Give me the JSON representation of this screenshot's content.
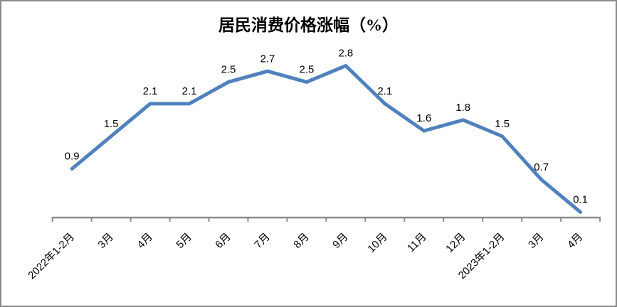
{
  "window": {
    "background_color": "#ffffff",
    "border_color": "#8a8a8a"
  },
  "chart_data": {
    "type": "line",
    "title": "居民消费价格涨幅（%）",
    "categories": [
      "2022年1-2月",
      "3月",
      "4月",
      "5月",
      "6月",
      "7月",
      "8月",
      "9月",
      "10月",
      "11月",
      "12月",
      "2023年1-2月",
      "3月",
      "4月"
    ],
    "values": [
      0.9,
      1.5,
      2.1,
      2.1,
      2.5,
      2.7,
      2.5,
      2.8,
      2.1,
      1.6,
      1.8,
      1.5,
      0.7,
      0.1
    ],
    "data_labels": [
      "0.9",
      "1.5",
      "2.1",
      "2.1",
      "2.5",
      "2.7",
      "2.5",
      "2.8",
      "2.1",
      "1.6",
      "1.8",
      "1.5",
      "0.7",
      "0.1"
    ],
    "xlabel": "",
    "ylabel": "",
    "ylim": [
      0,
      3
    ],
    "grid": false,
    "legend": false,
    "y_axis_visible": false,
    "x_label_rotation_deg": -45,
    "line_color": "#4F81BD",
    "axis_color": "#8c8c8c",
    "label_color": "#000000"
  }
}
